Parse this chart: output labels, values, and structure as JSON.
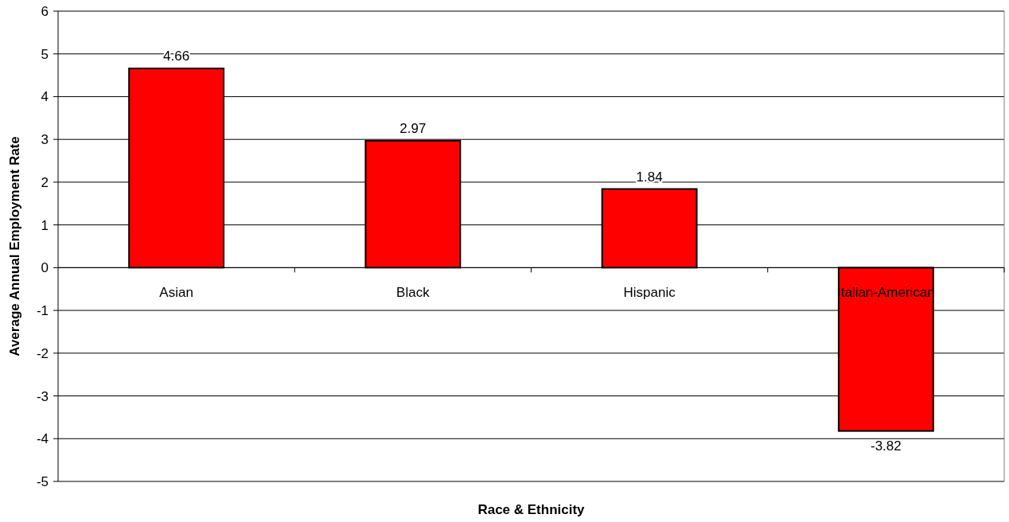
{
  "chart_data": {
    "type": "bar",
    "xlabel": "Race & Ethnicity",
    "ylabel": "Average Annual Employment Rate",
    "categories": [
      "Asian",
      "Black",
      "Hispanic",
      "Italian-American"
    ],
    "values": [
      4.66,
      2.97,
      1.84,
      -3.82
    ],
    "color": "#ff0000",
    "ylim": [
      -5,
      6
    ],
    "yticks": [
      -5,
      -4,
      -3,
      -2,
      -1,
      0,
      1,
      2,
      3,
      4,
      5,
      6
    ],
    "grid": "y",
    "data_labels": true
  }
}
